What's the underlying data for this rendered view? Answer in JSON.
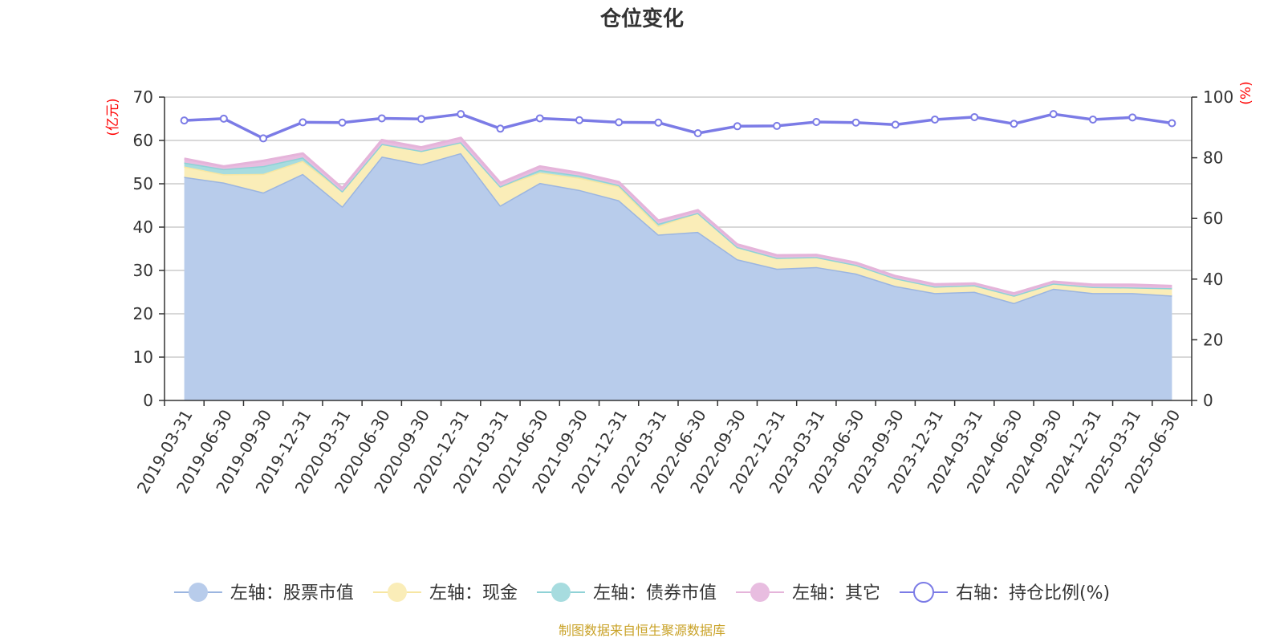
{
  "chart_data": {
    "type": "area",
    "title": "仓位变化",
    "source": "制图数据来自恒生聚源数据库",
    "y_left_unit": "(亿元)",
    "y_right_unit": "(%)",
    "y_left_range": [
      0,
      70
    ],
    "y_left_ticks": [
      0,
      10,
      20,
      30,
      40,
      50,
      60,
      70
    ],
    "y_right_range": [
      0,
      100
    ],
    "y_right_ticks": [
      0,
      20,
      40,
      60,
      80,
      100
    ],
    "grid": true,
    "legend_position": "bottom",
    "stacked": true,
    "categories": [
      "2019-03-31",
      "2019-06-30",
      "2019-09-30",
      "2019-12-31",
      "2020-03-31",
      "2020-06-30",
      "2020-09-30",
      "2020-12-31",
      "2021-03-31",
      "2021-06-30",
      "2021-09-30",
      "2021-12-31",
      "2022-03-31",
      "2022-06-30",
      "2022-09-30",
      "2022-12-31",
      "2023-03-31",
      "2023-06-30",
      "2023-09-30",
      "2023-12-31",
      "2024-03-31",
      "2024-06-30",
      "2024-09-30",
      "2024-12-31",
      "2025-03-31",
      "2025-06-30"
    ],
    "series": [
      {
        "name": "左轴：股票市值",
        "axis": "left",
        "color": "#9bb5e0",
        "fill": "#b8cceb",
        "values": [
          51.6,
          50.3,
          48.0,
          52.3,
          44.8,
          56.3,
          54.5,
          57.1,
          45.0,
          50.2,
          48.6,
          46.2,
          38.3,
          38.9,
          32.6,
          30.4,
          30.8,
          29.3,
          26.4,
          24.8,
          25.1,
          22.5,
          25.8,
          24.8,
          24.8,
          24.2
        ]
      },
      {
        "name": "左轴：现金",
        "axis": "left",
        "color": "#f7e6a2",
        "fill": "#faedb8",
        "values": [
          2.4,
          1.9,
          4.3,
          3.0,
          3.5,
          2.9,
          3.1,
          2.5,
          4.4,
          2.4,
          2.8,
          3.2,
          2.0,
          4.4,
          2.8,
          2.5,
          2.3,
          2.0,
          1.8,
          1.5,
          1.5,
          1.7,
          1.2,
          1.4,
          1.3,
          1.7
        ]
      },
      {
        "name": "左轴：债券市值",
        "axis": "left",
        "color": "#8fd2d6",
        "fill": "#a7dcdf",
        "values": [
          0.9,
          1.2,
          1.8,
          0.8,
          0.0,
          0.0,
          0.0,
          0.0,
          0.0,
          0.6,
          0.5,
          0.3,
          0.5,
          0.0,
          0.0,
          0.0,
          0.0,
          0.0,
          0.0,
          0.0,
          0.0,
          0.0,
          0.0,
          0.0,
          0.0,
          0.0
        ]
      },
      {
        "name": "左轴：其它",
        "axis": "left",
        "color": "#e5b4da",
        "fill": "#e8bde0",
        "values": [
          0.9,
          0.6,
          1.2,
          0.9,
          0.7,
          0.9,
          0.8,
          1.0,
          0.8,
          0.8,
          0.6,
          0.7,
          0.7,
          0.6,
          0.6,
          0.6,
          0.5,
          0.5,
          0.5,
          0.5,
          0.4,
          0.5,
          0.4,
          0.5,
          0.6,
          0.5
        ]
      },
      {
        "name": "右轴：持仓比例(%)",
        "axis": "right",
        "color": "#7b7be6",
        "values": [
          92.3,
          92.9,
          86.4,
          91.7,
          91.6,
          93.0,
          92.8,
          94.4,
          89.6,
          93.0,
          92.4,
          91.7,
          91.6,
          88.1,
          90.4,
          90.5,
          91.8,
          91.6,
          90.9,
          92.6,
          93.4,
          91.2,
          94.4,
          92.6,
          93.3,
          91.4
        ]
      }
    ]
  }
}
